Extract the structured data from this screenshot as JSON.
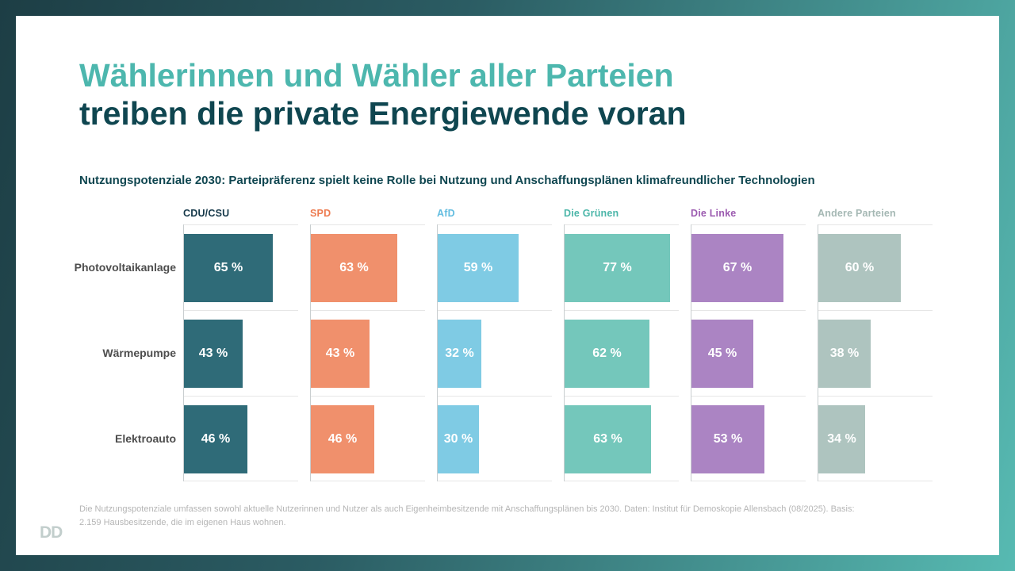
{
  "page": {
    "title_line1": "Wählerinnen und Wähler aller Parteien",
    "title_line2": "treiben die private Energiewende voran",
    "subtitle": "Nutzungspotenziale 2030: Parteipräferenz spielt keine Rolle bei Nutzung und Anschaffungsplänen klimafreundlicher Technologien",
    "footnote_line1": "Die Nutzungspotenziale umfassen sowohl aktuelle Nutzerinnen und Nutzer als auch Eigenheimbesitzende mit Anschaffungsplänen bis 2030. Daten: Institut für Demoskopie Allensbach (08/2025). Basis:",
    "footnote_line2": "2.159 Hausbesitzende, die im eigenen Haus wohnen.",
    "logo_text": "DD"
  },
  "colors": {
    "title_line1": "#4db7ae",
    "title_line2": "#0f4650",
    "frame_gradient_start": "#1d3e45",
    "frame_gradient_end": "#57bab2",
    "row_label": "#4d4d4d",
    "grid_vertical": "#c9ced0",
    "grid_horizontal": "#e6e6e6",
    "value_text": "#ffffff",
    "footnote": "#b5b5b5"
  },
  "chart_data": {
    "type": "bar",
    "orientation": "horizontal",
    "title": "Nutzungspotenziale 2030",
    "categories": [
      "Photovoltaikanlage",
      "Wärmepumpe",
      "Elektroauto"
    ],
    "series": [
      {
        "name": "CDU/CSU",
        "values": [
          65,
          43,
          46
        ],
        "bar_color": "#2f6b78",
        "label_color": "#16394a"
      },
      {
        "name": "SPD",
        "values": [
          63,
          43,
          46
        ],
        "bar_color": "#f0906c",
        "label_color": "#ed7b50"
      },
      {
        "name": "AfD",
        "values": [
          59,
          32,
          30
        ],
        "bar_color": "#7fcbe4",
        "label_color": "#63bde0"
      },
      {
        "name": "Die Grünen",
        "values": [
          77,
          62,
          63
        ],
        "bar_color": "#74c7bb",
        "label_color": "#4cb6a9"
      },
      {
        "name": "Die Linke",
        "values": [
          67,
          45,
          53
        ],
        "bar_color": "#ab84c3",
        "label_color": "#9c5bb0"
      },
      {
        "name": "Andere Parteien",
        "values": [
          60,
          38,
          34
        ],
        "bar_color": "#aec4bf",
        "label_color": "#a5b8b4"
      }
    ],
    "value_suffix": " %",
    "xlim": [
      0,
      100
    ],
    "grid": "row-separators",
    "legend_position": "column-headers"
  }
}
